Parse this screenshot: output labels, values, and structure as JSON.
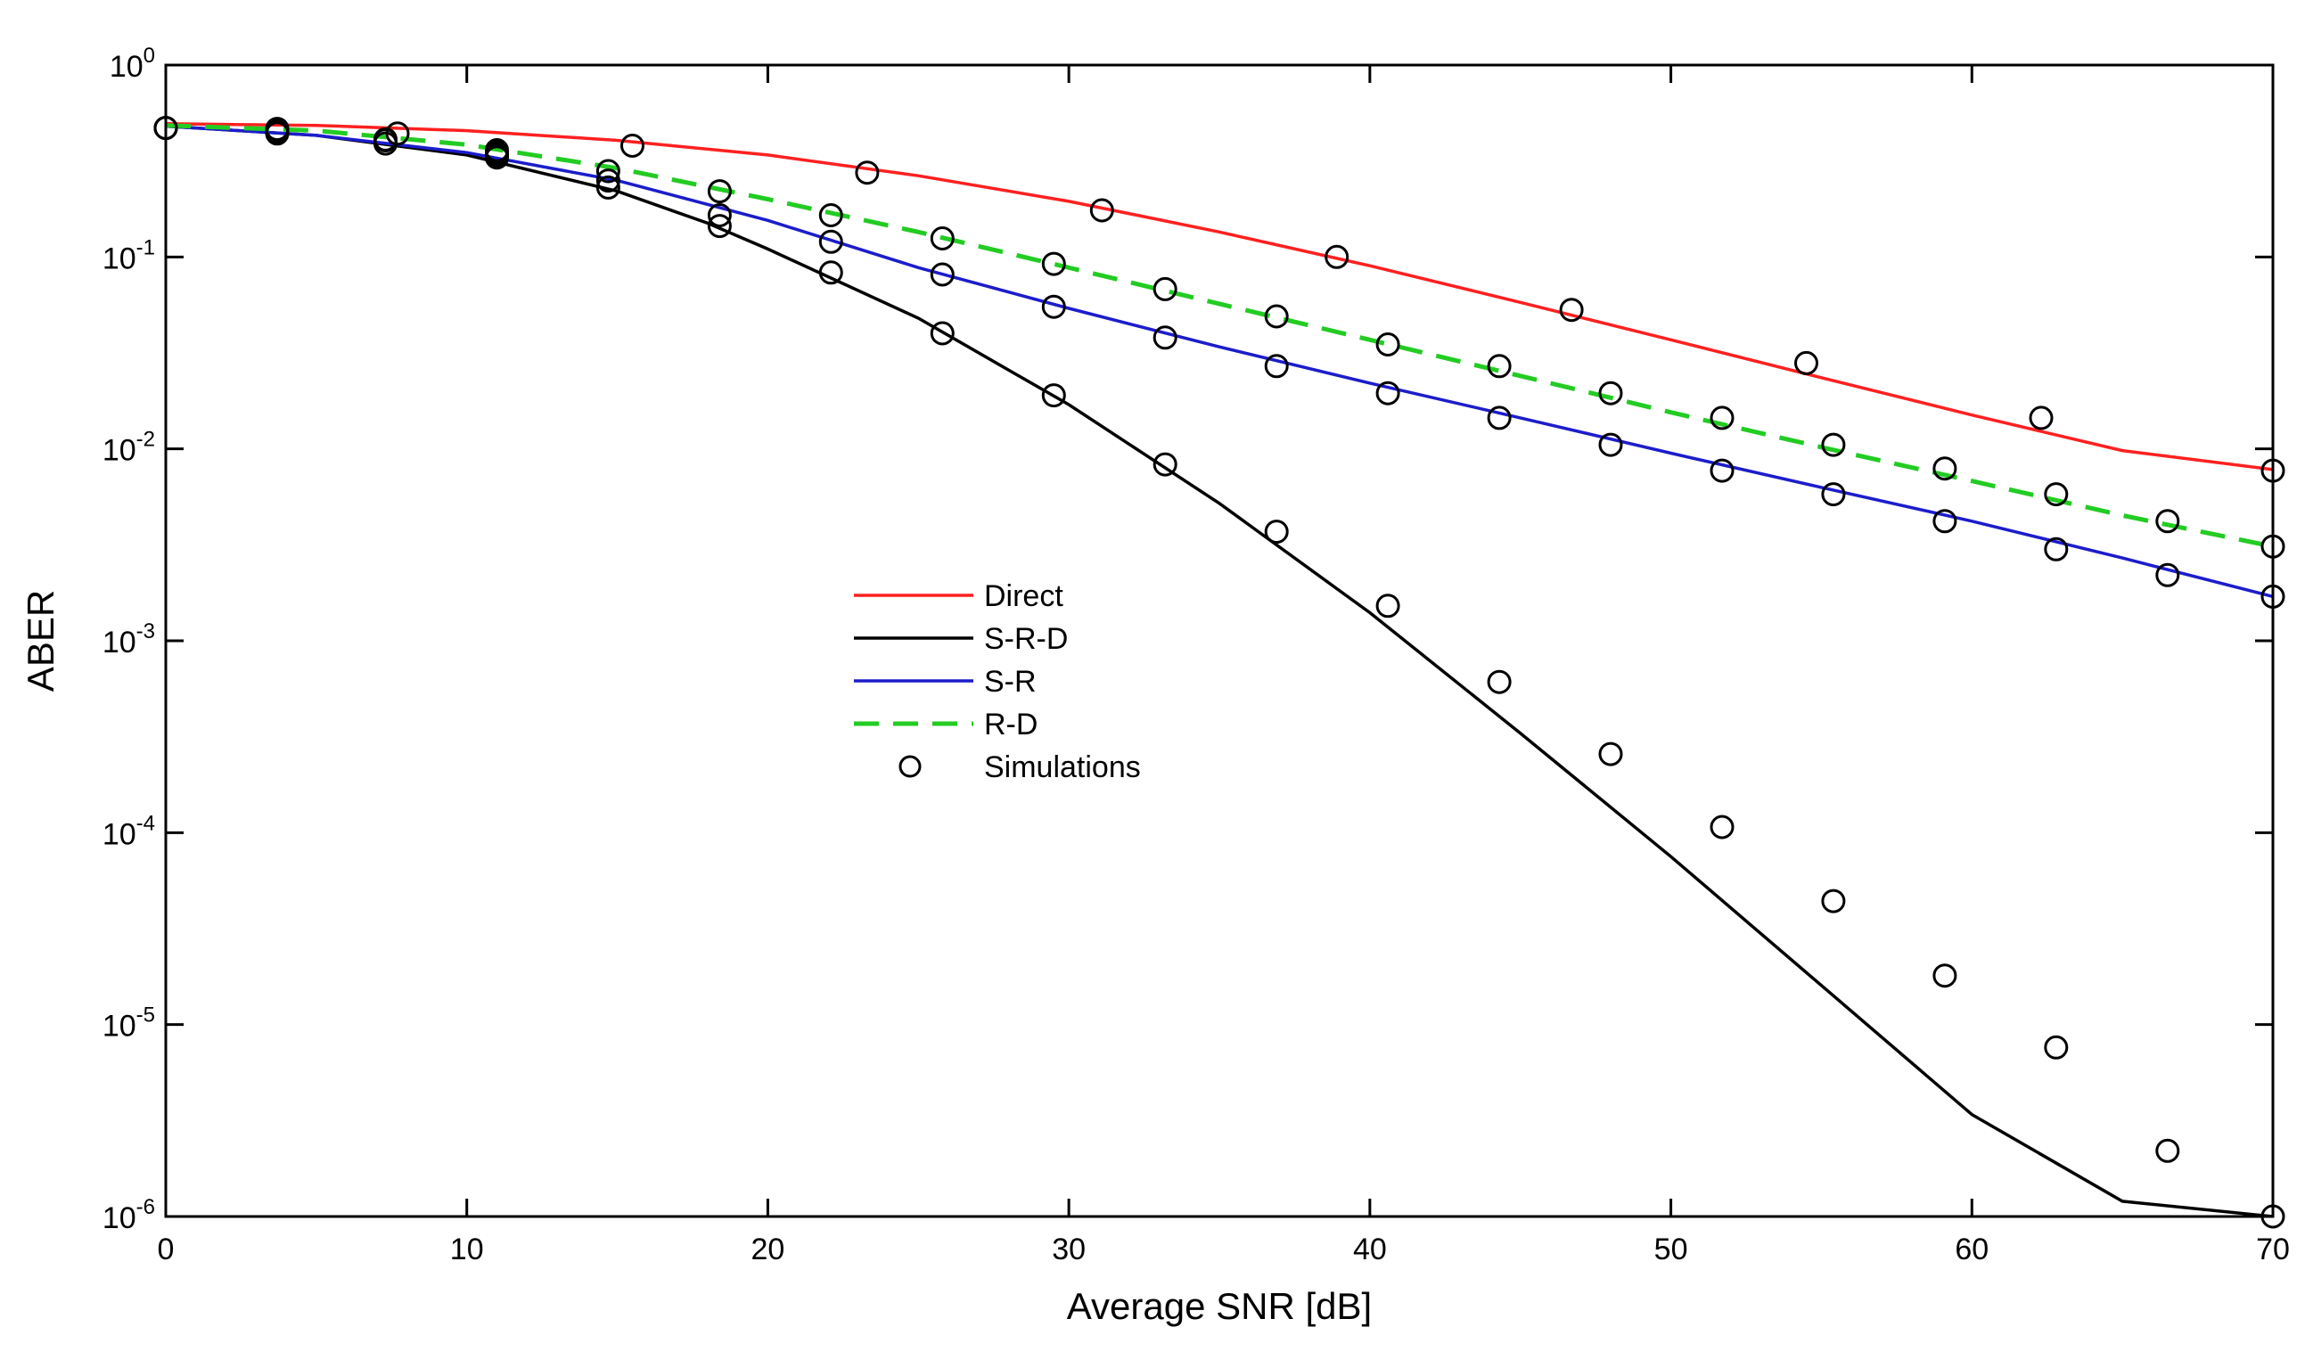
{
  "chart_data": {
    "type": "line",
    "title": "",
    "xlabel": "Average SNR [dB]",
    "ylabel": "ABER",
    "xlim": [
      0,
      70
    ],
    "ylim": [
      1e-06,
      1
    ],
    "yscale": "log",
    "x_ticks": [
      "0",
      "10",
      "20",
      "30",
      "40",
      "50",
      "60",
      "70"
    ],
    "y_ticks": [
      {
        "value": 1,
        "base": "10",
        "exp": "0"
      },
      {
        "value": 0.1,
        "base": "10",
        "exp": "-1"
      },
      {
        "value": 0.01,
        "base": "10",
        "exp": "-2"
      },
      {
        "value": 0.001,
        "base": "10",
        "exp": "-3"
      },
      {
        "value": 0.0001,
        "base": "10",
        "exp": "-4"
      },
      {
        "value": 1e-05,
        "base": "10",
        "exp": "-5"
      },
      {
        "value": 1e-06,
        "base": "10",
        "exp": "-6"
      }
    ],
    "grid": false,
    "legend_position": "center-left",
    "series": [
      {
        "name": "Direct",
        "color": "#ff2020",
        "dash": "solid",
        "x": [
          0,
          5,
          10,
          15,
          20,
          25,
          30,
          35,
          40,
          45,
          50,
          55,
          60,
          65,
          70
        ],
        "values": [
          0.495,
          0.485,
          0.455,
          0.405,
          0.34,
          0.265,
          0.195,
          0.135,
          0.09,
          0.058,
          0.037,
          0.0235,
          0.015,
          0.0098,
          0.0078
        ]
      },
      {
        "name": "S-R-D",
        "color": "#000000",
        "dash": "solid",
        "x": [
          0,
          5,
          10,
          15,
          18,
          20,
          25,
          30,
          35,
          40,
          45,
          50,
          55,
          60,
          65,
          70
        ],
        "values": [
          0.48,
          0.43,
          0.34,
          0.22,
          0.15,
          0.11,
          0.048,
          0.017,
          0.0052,
          0.0014,
          0.00033,
          7.5e-05,
          1.6e-05,
          3.4e-06,
          1.2e-06,
          1e-06
        ]
      },
      {
        "name": "S-R",
        "color": "#1c1ccc",
        "dash": "solid",
        "x": [
          0,
          5,
          10,
          15,
          20,
          25,
          30,
          35,
          40,
          45,
          50,
          55,
          60,
          65,
          70
        ],
        "values": [
          0.48,
          0.43,
          0.35,
          0.25,
          0.155,
          0.088,
          0.054,
          0.034,
          0.022,
          0.0145,
          0.0095,
          0.0063,
          0.0042,
          0.0027,
          0.0017
        ]
      },
      {
        "name": "R-D",
        "color": "#22cc22",
        "dash": "dashed",
        "x": [
          0,
          5,
          10,
          15,
          20,
          25,
          30,
          35,
          40,
          45,
          50,
          55,
          60,
          65,
          70
        ],
        "values": [
          0.485,
          0.455,
          0.385,
          0.29,
          0.2,
          0.135,
          0.088,
          0.057,
          0.037,
          0.024,
          0.0155,
          0.0102,
          0.0068,
          0.0045,
          0.0031
        ]
      }
    ],
    "simulations": {
      "name": "Simulations",
      "x": [
        0,
        3.7,
        7.3,
        11,
        14.7,
        18.4,
        22.1,
        25.8,
        29.5,
        33.2,
        36.9,
        40.6,
        44.3,
        48,
        51.7,
        55.4,
        59.1,
        62.8,
        66.5,
        70,
        3.7,
        7.7,
        11,
        15.5,
        23.3,
        31.1,
        38.9,
        46.7,
        54.5,
        62.3,
        70,
        0,
        3.7,
        7.3,
        11,
        14.7,
        18.4,
        22.1,
        25.8,
        29.5,
        33.2,
        36.9,
        40.6,
        44.3,
        48,
        51.7,
        55.4,
        59.1,
        62.8,
        66.5,
        70,
        0,
        3.7,
        7.3,
        11,
        14.7,
        18.4,
        22.1,
        25.8,
        29.5,
        33.2,
        36.9,
        40.6,
        44.3,
        48,
        51.7,
        55.4,
        59.1,
        62.8,
        66.5,
        70
      ],
      "values": [
        0.47,
        0.44,
        0.39,
        0.33,
        0.23,
        0.145,
        0.083,
        0.04,
        0.019,
        0.0083,
        0.0037,
        0.00152,
        0.00061,
        0.000257,
        0.000107,
        4.4e-05,
        1.8e-05,
        7.6e-06,
        2.2e-06,
        1e-06,
        0.465,
        0.44,
        0.36,
        0.38,
        0.275,
        0.175,
        0.1,
        0.053,
        0.028,
        0.0145,
        0.0077,
        0.47,
        0.45,
        0.405,
        0.34,
        0.25,
        0.165,
        0.12,
        0.081,
        0.055,
        0.038,
        0.027,
        0.0195,
        0.0145,
        0.0105,
        0.0077,
        0.0058,
        0.0042,
        0.003,
        0.0022,
        0.0017,
        0.47,
        0.455,
        0.41,
        0.35,
        0.28,
        0.22,
        0.165,
        0.125,
        0.092,
        0.068,
        0.049,
        0.035,
        0.027,
        0.0195,
        0.0145,
        0.0105,
        0.0079,
        0.0058,
        0.0042,
        0.0031
      ]
    }
  }
}
